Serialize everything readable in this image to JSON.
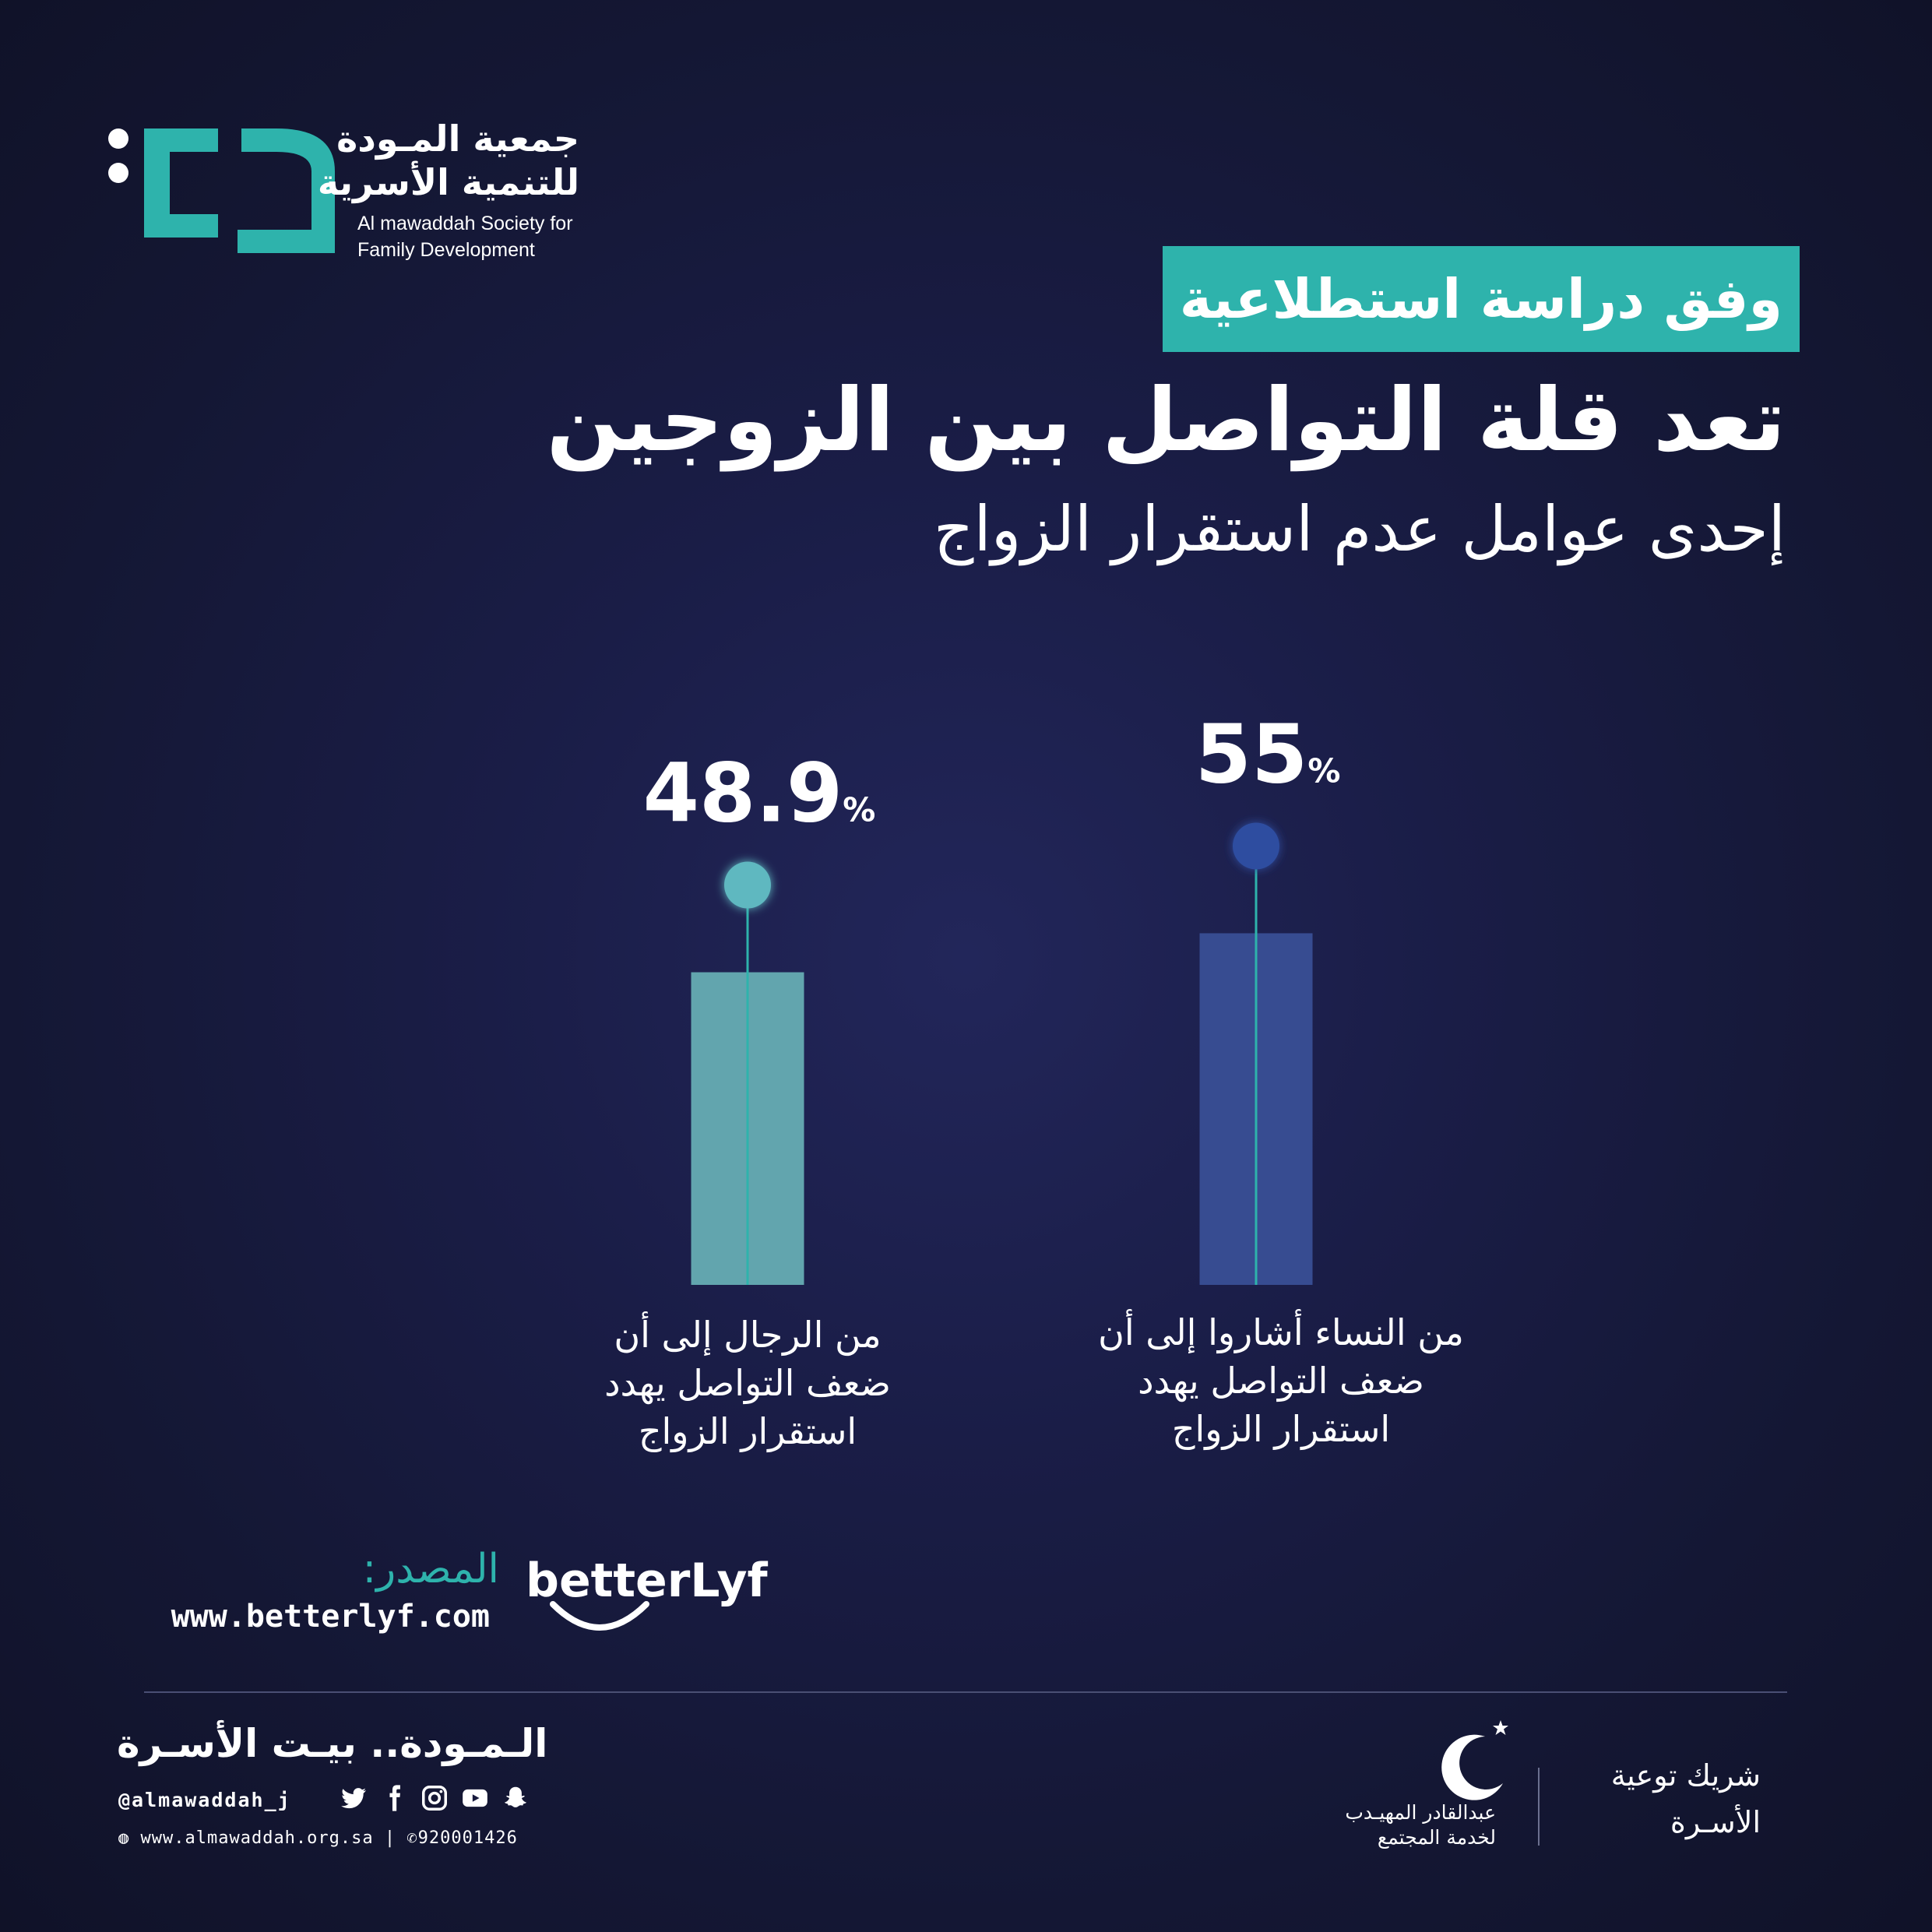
{
  "logo": {
    "name_ar_line1": "جمعية المـودة",
    "name_ar_line2": "للتنمية الأسرية",
    "name_en_line1": "Al mawaddah Society for",
    "name_en_line2": "Family Development"
  },
  "header": {
    "tag": "وفق دراسة استطلاعية",
    "headline": "تعد قلة التواصل بين الزوجين",
    "subhead": "إحدى عوامل عدم استقرار الزواج"
  },
  "chart_data": {
    "type": "bar",
    "categories": [
      "من الرجال إلى أن ضعف التواصل يهدد استقرار الزواج",
      "من النساء أشاروا إلى أن ضعف التواصل يهدد استقرار الزواج"
    ],
    "values": [
      48.9,
      55
    ],
    "value_labels": [
      "48.9",
      "55"
    ],
    "unit": "%",
    "colors": [
      "#62a5ae",
      "#374c91"
    ],
    "marker_colors": [
      "#5fb8c0",
      "#2e4ea0"
    ],
    "title": "",
    "xlabel": "",
    "ylabel": "",
    "grid": false
  },
  "captions": {
    "men": [
      "من الرجال إلى أن",
      "ضعف التواصل يهدد",
      "استقرار الزواج"
    ],
    "women": [
      "من النساء أشاروا إلى أن",
      "ضعف التواصل يهدد",
      "استقرار الزواج"
    ]
  },
  "source": {
    "label": "المصدر:",
    "url": "www.betterlyf.com",
    "logo_text": "betterLyf"
  },
  "footer": {
    "slogan": "الـمـودة.. بيـت الأسـرة",
    "handle": "@almawaddah_j",
    "website": "www.almawaddah.org.sa",
    "phone": "920001426",
    "sponsor_line1": "عبدالقادر المهيـدب",
    "sponsor_line2": "لخدمة المجتمع",
    "partner_line1": "شريك توعية",
    "partner_line2": "الأسـرة"
  },
  "colors": {
    "accent": "#2eb3ac",
    "background": "#171a3d"
  }
}
